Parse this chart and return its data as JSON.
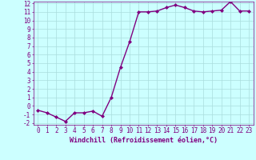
{
  "x": [
    0,
    1,
    2,
    3,
    4,
    5,
    6,
    7,
    8,
    9,
    10,
    11,
    12,
    13,
    14,
    15,
    16,
    17,
    18,
    19,
    20,
    21,
    22,
    23
  ],
  "y": [
    -0.5,
    -0.8,
    -1.3,
    -1.8,
    -0.8,
    -0.8,
    -0.6,
    -1.2,
    1.0,
    4.5,
    7.5,
    11.0,
    11.0,
    11.1,
    11.5,
    11.8,
    11.5,
    11.1,
    11.0,
    11.1,
    11.2,
    12.2,
    11.1,
    11.1
  ],
  "line_color": "#800080",
  "marker": "D",
  "marker_size": 2,
  "bg_color": "#ccffff",
  "grid_color": "#aadddd",
  "xlabel": "Windchill (Refroidissement éolien,°C)",
  "xlabel_color": "#800080",
  "tick_color": "#800080",
  "spine_color": "#800080",
  "ylim": [
    -2,
    12
  ],
  "xlim": [
    -0.5,
    23.5
  ],
  "yticks": [
    -2,
    -1,
    0,
    1,
    2,
    3,
    4,
    5,
    6,
    7,
    8,
    9,
    10,
    11,
    12
  ],
  "xticks": [
    0,
    1,
    2,
    3,
    4,
    5,
    6,
    7,
    8,
    9,
    10,
    11,
    12,
    13,
    14,
    15,
    16,
    17,
    18,
    19,
    20,
    21,
    22,
    23
  ],
  "linewidth": 1.0,
  "tick_fontsize": 5.5,
  "xlabel_fontsize": 6.0
}
